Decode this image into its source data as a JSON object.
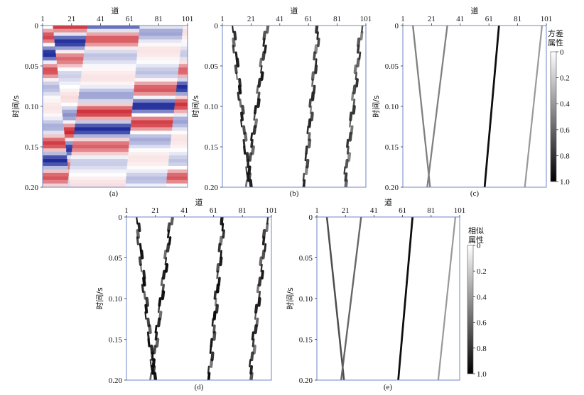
{
  "figure": {
    "panels": [
      {
        "id": "a",
        "caption": "(a)",
        "kind": "seismic",
        "x_axis_label": "道",
        "x_ticks": [
          "1",
          "21",
          "41",
          "61",
          "81",
          "101"
        ],
        "y_axis_label": "时间/s",
        "y_ticks": [
          "0",
          "0.05",
          "0.10",
          "0.15",
          "0.20"
        ]
      },
      {
        "id": "b",
        "caption": "(b)",
        "kind": "attribute",
        "x_axis_label": "道",
        "x_ticks": [
          "1",
          "21",
          "41",
          "61",
          "81",
          "101"
        ],
        "y_axis_label": "时间/s",
        "y_ticks": [
          "0",
          "0.05",
          "0.10",
          "0.15",
          "0.20"
        ]
      },
      {
        "id": "c",
        "caption": "(c)",
        "kind": "attribute",
        "x_axis_label": "道",
        "x_ticks": [
          "1",
          "21",
          "41",
          "61",
          "81",
          "101"
        ],
        "y_axis_label": "时间/s",
        "y_ticks": [
          "0",
          "0.05",
          "0.10",
          "0.15",
          "0.20"
        ]
      },
      {
        "id": "d",
        "caption": "(d)",
        "kind": "attribute",
        "x_axis_label": "道",
        "x_ticks": [
          "1",
          "21",
          "41",
          "61",
          "81",
          "101"
        ],
        "y_axis_label": "时间/s",
        "y_ticks": [
          "0",
          "0.05",
          "0.10",
          "0.15",
          "0.20"
        ]
      },
      {
        "id": "e",
        "caption": "(e)",
        "kind": "attribute",
        "x_axis_label": "道",
        "x_ticks": [
          "1",
          "21",
          "41",
          "61",
          "81",
          "101"
        ],
        "y_axis_label": "时间/s",
        "y_ticks": [
          "0",
          "0.05",
          "0.10",
          "0.15",
          "0.20"
        ]
      }
    ],
    "colorbars": [
      {
        "id": "variance",
        "title_line1": "方差",
        "title_line2": "属性",
        "ticks": [
          "0",
          "0.2",
          "0.4",
          "0.6",
          "0.8",
          "1.0"
        ]
      },
      {
        "id": "similarity",
        "title_line1": "相似",
        "title_line2": "属性",
        "ticks": [
          "0",
          "0.2",
          "0.4",
          "0.6",
          "0.8",
          "1.0"
        ]
      }
    ]
  },
  "chart_data": [
    {
      "type": "heatmap",
      "panel": "a",
      "x_range": [
        1,
        101
      ],
      "y_range": [
        0,
        0.2
      ],
      "y_reversed": true,
      "colormap": [
        "#1d2a9a",
        "#ffffff",
        "#c8141e"
      ],
      "faults": [
        {
          "trace_top": 8,
          "trace_bottom": 20,
          "time_top": 0,
          "time_bottom": 0.2
        },
        {
          "trace_top": 32,
          "trace_bottom": 18,
          "time_top": 0,
          "time_bottom": 0.2
        },
        {
          "trace_top": 68,
          "trace_bottom": 58,
          "time_top": 0,
          "time_bottom": 0.2
        },
        {
          "trace_top": 98,
          "trace_bottom": 86,
          "time_top": 0,
          "time_bottom": 0.2
        }
      ]
    },
    {
      "type": "heatmap",
      "panel": "b",
      "attribute": "variance",
      "x_range": [
        1,
        101
      ],
      "y_range": [
        0,
        0.2
      ],
      "value_range": [
        0,
        1
      ],
      "lines": [
        {
          "trace_top": 8,
          "trace_bottom": 20,
          "value": 0.9
        },
        {
          "trace_top": 32,
          "trace_bottom": 18,
          "value": 0.9
        },
        {
          "trace_top": 68,
          "trace_bottom": 58,
          "value": 0.85
        },
        {
          "trace_top": 98,
          "trace_bottom": 86,
          "value": 0.8
        }
      ]
    },
    {
      "type": "heatmap",
      "panel": "c",
      "attribute": "variance",
      "x_range": [
        1,
        101
      ],
      "y_range": [
        0,
        0.2
      ],
      "value_range": [
        0,
        1
      ],
      "lines": [
        {
          "trace_top": 8,
          "trace_bottom": 20,
          "value": 0.5
        },
        {
          "trace_top": 32,
          "trace_bottom": 18,
          "value": 0.5
        },
        {
          "trace_top": 68,
          "trace_bottom": 58,
          "value": 0.95
        },
        {
          "trace_top": 98,
          "trace_bottom": 86,
          "value": 0.4
        }
      ]
    },
    {
      "type": "heatmap",
      "panel": "d",
      "attribute": "similarity",
      "x_range": [
        1,
        101
      ],
      "y_range": [
        0,
        0.2
      ],
      "value_range": [
        0,
        1
      ],
      "lines": [
        {
          "trace_top": 8,
          "trace_bottom": 20,
          "value": 0.95
        },
        {
          "trace_top": 32,
          "trace_bottom": 18,
          "value": 0.95
        },
        {
          "trace_top": 68,
          "trace_bottom": 58,
          "value": 0.95
        },
        {
          "trace_top": 98,
          "trace_bottom": 86,
          "value": 0.9
        }
      ]
    },
    {
      "type": "heatmap",
      "panel": "e",
      "attribute": "similarity",
      "x_range": [
        1,
        101
      ],
      "y_range": [
        0,
        0.2
      ],
      "value_range": [
        0,
        1
      ],
      "lines": [
        {
          "trace_top": 8,
          "trace_bottom": 20,
          "value": 0.7
        },
        {
          "trace_top": 32,
          "trace_bottom": 18,
          "value": 0.6
        },
        {
          "trace_top": 68,
          "trace_bottom": 58,
          "value": 0.95
        },
        {
          "trace_top": 98,
          "trace_bottom": 86,
          "value": 0.4
        }
      ]
    }
  ]
}
